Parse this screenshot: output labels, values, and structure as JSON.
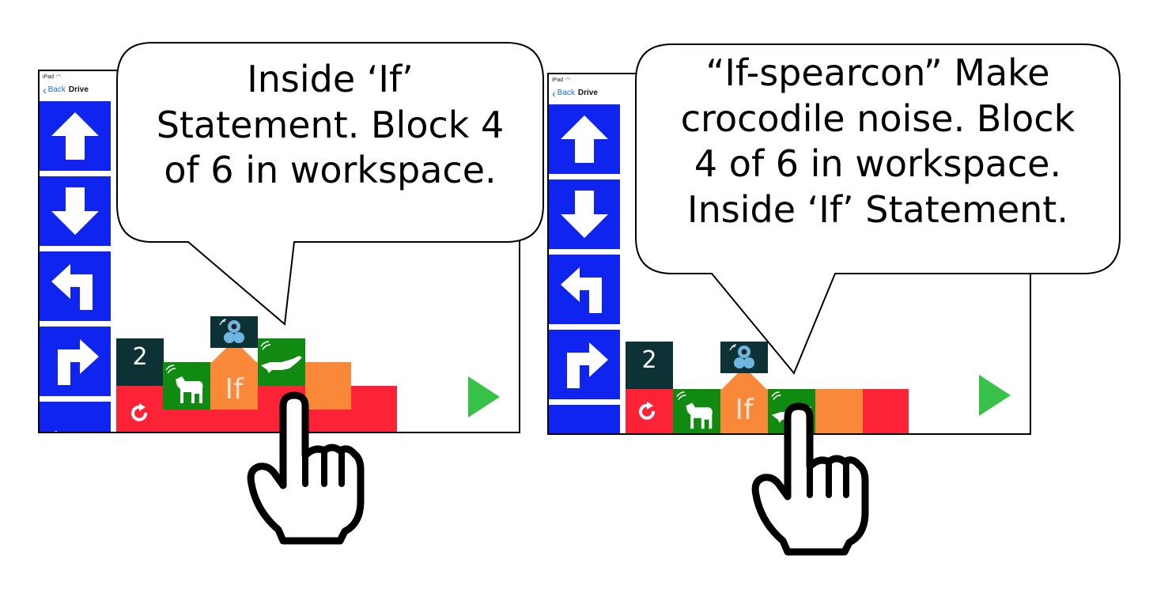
{
  "status_bar": {
    "carrier": "iPad",
    "wifi_icon": "wifi-icon"
  },
  "nav": {
    "back_label": "Back",
    "title": "Drive"
  },
  "palette": {
    "items": [
      {
        "icon": "arrow-up-icon"
      },
      {
        "icon": "arrow-down-icon"
      },
      {
        "icon": "turn-left-icon"
      },
      {
        "icon": "turn-right-icon"
      }
    ]
  },
  "colors": {
    "palette_blue": "#1024f0",
    "block_dark": "#0d3236",
    "block_green": "#108a10",
    "block_orange": "#f98838",
    "block_red": "#fc2336",
    "play_green": "#37c148",
    "link_blue": "#1a6aff"
  },
  "left_panel": {
    "repeat_count": "2",
    "if_label": "If",
    "speech_line1": "Inside ‘If’",
    "speech_line2": "Statement. Block 4",
    "speech_line3": "of 6 in workspace."
  },
  "right_panel": {
    "repeat_count": "2",
    "if_label": "If",
    "speech_line1": "“If-spearcon” Make",
    "speech_line2": "crocodile noise. Block",
    "speech_line3": "4 of 6 in workspace.",
    "speech_line4": "Inside ‘If’ Statement."
  }
}
